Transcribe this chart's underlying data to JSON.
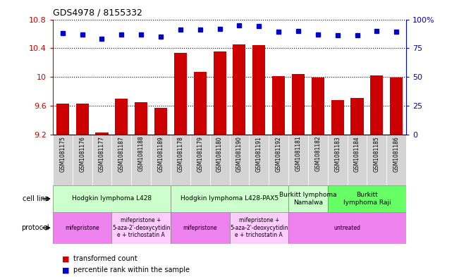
{
  "title": "GDS4978 / 8155332",
  "samples": [
    "GSM1081175",
    "GSM1081176",
    "GSM1081177",
    "GSM1081187",
    "GSM1081188",
    "GSM1081189",
    "GSM1081178",
    "GSM1081179",
    "GSM1081180",
    "GSM1081190",
    "GSM1081191",
    "GSM1081192",
    "GSM1081181",
    "GSM1081182",
    "GSM1081183",
    "GSM1081184",
    "GSM1081185",
    "GSM1081186"
  ],
  "bar_values": [
    9.63,
    9.63,
    9.23,
    9.7,
    9.65,
    9.57,
    10.33,
    10.07,
    10.35,
    10.45,
    10.44,
    10.01,
    10.04,
    9.99,
    9.68,
    9.71,
    10.02,
    9.99
  ],
  "dot_values": [
    88,
    87,
    83,
    87,
    87,
    85,
    91,
    91,
    92,
    95,
    94,
    89,
    90,
    87,
    86,
    86,
    90,
    89
  ],
  "ymin": 9.2,
  "ymax": 10.8,
  "y2min": 0,
  "y2max": 100,
  "yticks": [
    9.2,
    9.6,
    10.0,
    10.4,
    10.8
  ],
  "ytick_labels": [
    "9.2",
    "9.6",
    "10",
    "10.4",
    "10.8"
  ],
  "y2ticks": [
    0,
    25,
    50,
    75,
    100
  ],
  "y2tick_labels": [
    "0",
    "25",
    "50",
    "75",
    "100%"
  ],
  "bar_color": "#cc0000",
  "dot_color": "#0000cc",
  "plot_bg_color": "#ffffff",
  "xtick_bg_color": "#cccccc",
  "cell_line_groups": [
    {
      "label": "Hodgkin lymphoma L428",
      "start": 0,
      "end": 6,
      "color": "#ccffcc"
    },
    {
      "label": "Hodgkin lymphoma L428-PAX5",
      "start": 6,
      "end": 12,
      "color": "#ccffcc"
    },
    {
      "label": "Burkitt lymphoma\nNamalwa",
      "start": 12,
      "end": 14,
      "color": "#ccffcc"
    },
    {
      "label": "Burkitt\nlymphoma Raji",
      "start": 14,
      "end": 18,
      "color": "#66ff66"
    }
  ],
  "protocol_groups": [
    {
      "label": "mifepristone",
      "start": 0,
      "end": 3,
      "color": "#ee82ee"
    },
    {
      "label": "mifepristone +\n5-aza-2'-deoxycytidin\ne + trichostatin A",
      "start": 3,
      "end": 6,
      "color": "#ffccff"
    },
    {
      "label": "mifepristone",
      "start": 6,
      "end": 9,
      "color": "#ee82ee"
    },
    {
      "label": "mifepristone +\n5-aza-2'-deoxycytidin\ne + trichostatin A",
      "start": 9,
      "end": 12,
      "color": "#ffccff"
    },
    {
      "label": "untreated",
      "start": 12,
      "end": 18,
      "color": "#ee82ee"
    }
  ],
  "legend_bar_label": "transformed count",
  "legend_dot_label": "percentile rank within the sample",
  "cell_line_row_label": "cell line",
  "protocol_row_label": "protocol"
}
